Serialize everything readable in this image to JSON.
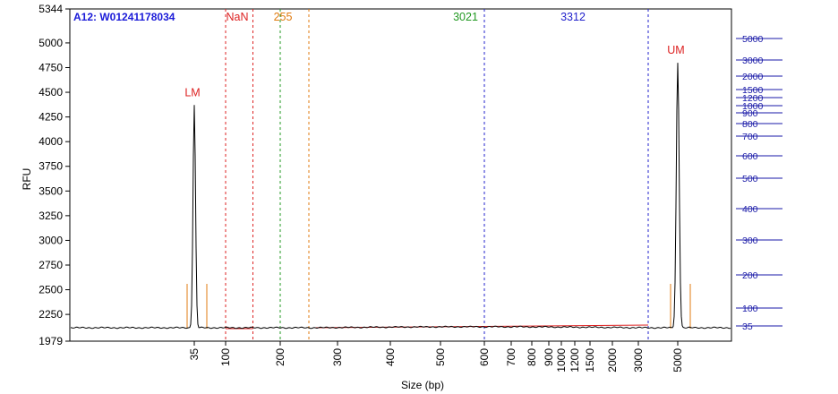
{
  "chart_data": {
    "type": "line",
    "title": "A12: W01241178034",
    "xlabel": "Size (bp)",
    "ylabel": "RFU",
    "ylim": [
      1979,
      5344
    ],
    "yticks": [
      1979,
      2250,
      2500,
      2750,
      3000,
      3250,
      3500,
      3750,
      4000,
      4250,
      4500,
      4750,
      5000,
      5344
    ],
    "xticks": [
      "35",
      "100",
      "200",
      "300",
      "400",
      "500",
      "600",
      "700",
      "800",
      "900",
      "1000",
      "1200",
      "1500",
      "2000",
      "3000",
      "5000"
    ],
    "ladder_scale": [
      "5000",
      "3000",
      "2000",
      "1500",
      "1200",
      "1000",
      "900",
      "800",
      "700",
      "600",
      "500",
      "400",
      "300",
      "200",
      "100",
      "35"
    ],
    "peaks": [
      {
        "label": "LM",
        "size": 35,
        "rfu": 4370,
        "color": "#dd2222"
      },
      {
        "label": "UM",
        "size": 5000,
        "rfu": 4800,
        "color": "#dd2222"
      }
    ],
    "baseline_rfu": 2115,
    "regions": [
      {
        "label": "NaN",
        "color": "#dd2222",
        "from": 100,
        "to": 150
      },
      {
        "label": "255",
        "color": "#e07b10",
        "from": 200,
        "to": 250
      },
      {
        "label": "3021",
        "color": "#229922",
        "from": 200,
        "to": 3500
      },
      {
        "label": "3312",
        "color": "#2222cc",
        "from": 600,
        "to": 3500
      }
    ],
    "grid": false
  }
}
